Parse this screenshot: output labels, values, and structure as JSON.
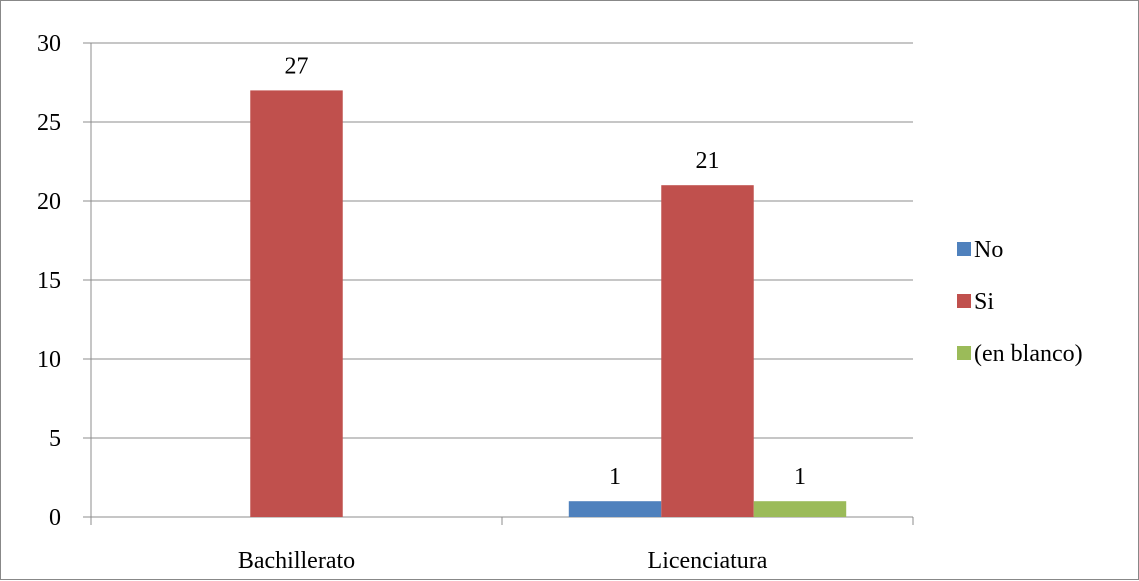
{
  "chart_data": {
    "type": "bar",
    "title": "",
    "xlabel": "",
    "ylabel": "",
    "ylim": [
      0,
      30
    ],
    "yticks": [
      0,
      5,
      10,
      15,
      20,
      25,
      30
    ],
    "grid": true,
    "legend_position": "right",
    "categories": [
      "Bachillerato",
      "Licenciatura"
    ],
    "series": [
      {
        "name": "No",
        "color": "#4F81BD",
        "values": [
          null,
          1
        ]
      },
      {
        "name": "Si",
        "color": "#C0504D",
        "values": [
          27,
          21
        ]
      },
      {
        "name": "(en blanco)",
        "color": "#9BBB59",
        "values": [
          null,
          1
        ]
      }
    ]
  }
}
